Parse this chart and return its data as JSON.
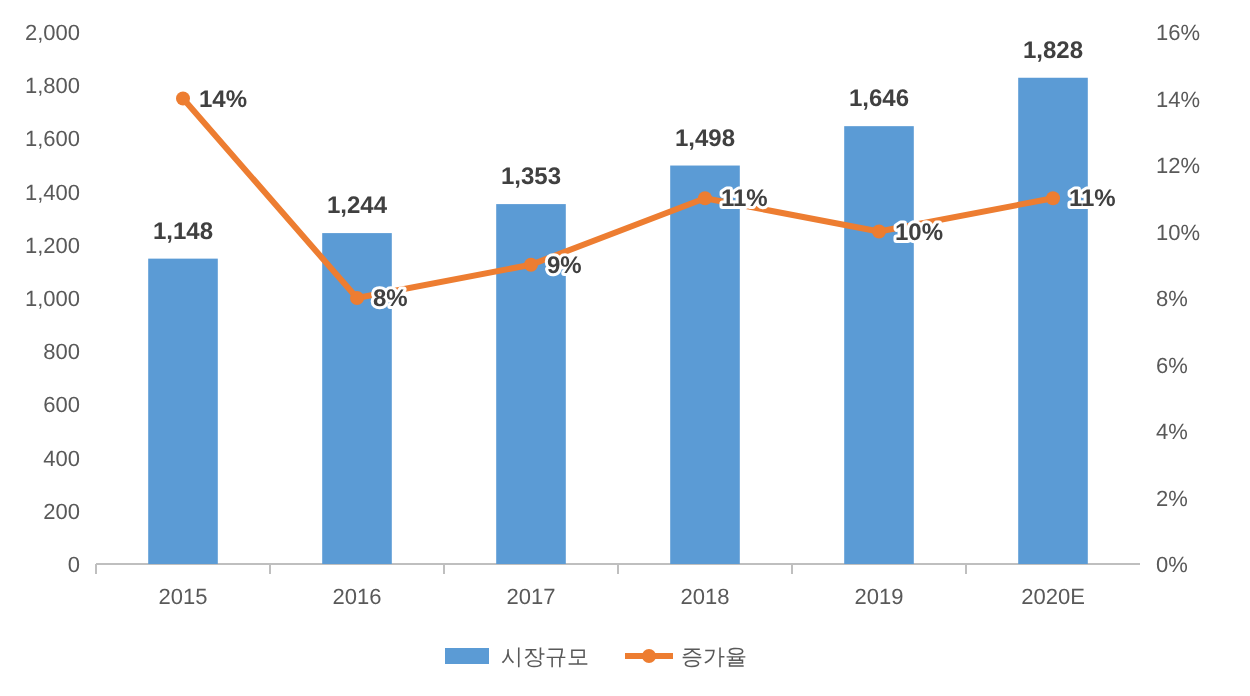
{
  "chart_data": {
    "type": "bar",
    "categories": [
      "2015",
      "2016",
      "2017",
      "2018",
      "2019",
      "2020E"
    ],
    "series": [
      {
        "name": "시장규모",
        "color": "#5b9bd5",
        "values": [
          1148,
          1244,
          1353,
          1498,
          1646,
          1828
        ],
        "value_labels": [
          "1,148",
          "1,244",
          "1,353",
          "1,498",
          "1,646",
          "1,828"
        ]
      },
      {
        "name": "증가율",
        "type": "line",
        "axis": "y2",
        "color": "#ed7d31",
        "values": [
          14,
          8,
          9,
          11,
          10,
          11
        ],
        "value_labels": [
          "14%",
          "8%",
          "9%",
          "11%",
          "10%",
          "11%"
        ]
      }
    ],
    "ylim": [
      0,
      2000
    ],
    "yticks": [
      0,
      200,
      400,
      600,
      800,
      {
        "value": 1000,
        "label": "1,000"
      },
      {
        "value": 1200,
        "label": "1,200"
      },
      {
        "value": 1400,
        "label": "1,400"
      },
      {
        "value": 1600,
        "label": "1,600"
      },
      {
        "value": 1800,
        "label": "1,800"
      },
      {
        "value": 2000,
        "label": "2,000"
      }
    ],
    "y2lim": [
      0,
      16
    ],
    "y2ticks": [
      {
        "value": 0,
        "label": "0%"
      },
      {
        "value": 2,
        "label": "2%"
      },
      {
        "value": 4,
        "label": "4%"
      },
      {
        "value": 6,
        "label": "6%"
      },
      {
        "value": 8,
        "label": "8%"
      },
      {
        "value": 10,
        "label": "10%"
      },
      {
        "value": 12,
        "label": "12%"
      },
      {
        "value": 14,
        "label": "14%"
      },
      {
        "value": 16,
        "label": "16%"
      }
    ],
    "grid": false,
    "legend": "bottom",
    "marker": "circle",
    "line_style": "solid"
  }
}
